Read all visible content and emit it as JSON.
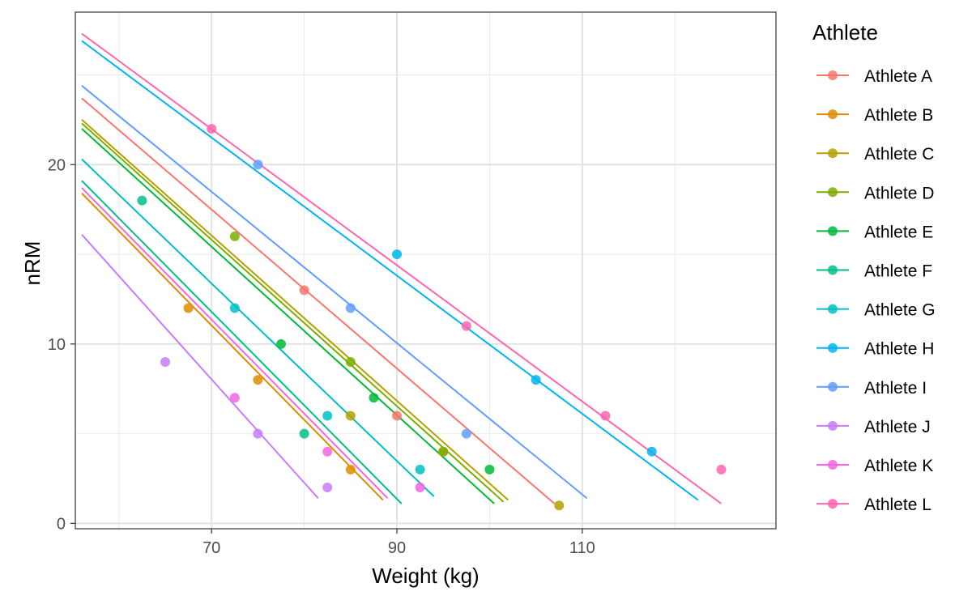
{
  "chart_data": {
    "type": "scatter",
    "xlabel": "Weight (kg)",
    "ylabel": "nRM",
    "xlim": [
      55.3,
      130.9
    ],
    "ylim": [
      -0.3,
      28.5
    ],
    "x_ticks": [
      70,
      90,
      110
    ],
    "x_minor_ticks": [
      60,
      80,
      100,
      120
    ],
    "y_ticks": [
      0,
      10,
      20
    ],
    "y_minor_ticks": [
      5,
      15,
      25
    ],
    "grid": true,
    "legend_title": "Athlete",
    "legend_position": "right",
    "series": [
      {
        "name": "Athlete A",
        "color": "#F8766D",
        "points": [
          [
            80,
            13
          ],
          [
            90,
            6
          ]
        ],
        "line": [
          [
            56,
            23.7
          ],
          [
            107,
            1.1
          ]
        ]
      },
      {
        "name": "Athlete B",
        "color": "#DE8C00",
        "points": [
          [
            67.5,
            12
          ],
          [
            75,
            8
          ],
          [
            85,
            3
          ]
        ],
        "line": [
          [
            56,
            18.4
          ],
          [
            88.5,
            1.3
          ]
        ]
      },
      {
        "name": "Athlete C",
        "color": "#B79F00",
        "points": [
          [
            85,
            6
          ],
          [
            95,
            4
          ],
          [
            107.5,
            1
          ]
        ],
        "line": [
          [
            56,
            22.5
          ],
          [
            102,
            1.3
          ]
        ]
      },
      {
        "name": "Athlete D",
        "color": "#7CAE00",
        "points": [
          [
            72.5,
            16
          ],
          [
            85,
            9
          ],
          [
            95,
            4
          ]
        ],
        "line": [
          [
            56,
            22.3
          ],
          [
            101.5,
            1.2
          ]
        ]
      },
      {
        "name": "Athlete E",
        "color": "#00BA38",
        "points": [
          [
            77.5,
            10
          ],
          [
            87.5,
            7
          ],
          [
            100,
            3
          ]
        ],
        "line": [
          [
            56,
            22
          ],
          [
            100.5,
            1.1
          ]
        ]
      },
      {
        "name": "Athlete F",
        "color": "#00C08B",
        "points": [
          [
            62.5,
            18
          ],
          [
            80,
            5
          ]
        ],
        "line": [
          [
            56,
            19.1
          ],
          [
            90.5,
            1.1
          ]
        ]
      },
      {
        "name": "Athlete G",
        "color": "#00BFC4",
        "points": [
          [
            72.5,
            12
          ],
          [
            82.5,
            6
          ],
          [
            92.5,
            3
          ]
        ],
        "line": [
          [
            56,
            20.3
          ],
          [
            94,
            1.5
          ]
        ]
      },
      {
        "name": "Athlete H",
        "color": "#00B4F0",
        "points": [
          [
            90,
            15
          ],
          [
            105,
            8
          ],
          [
            117.5,
            4
          ]
        ],
        "line": [
          [
            56,
            26.9
          ],
          [
            122.5,
            1.3
          ]
        ]
      },
      {
        "name": "Athlete I",
        "color": "#619CFF",
        "points": [
          [
            75,
            20
          ],
          [
            85,
            12
          ],
          [
            97.5,
            5
          ]
        ],
        "line": [
          [
            56,
            24.4
          ],
          [
            110.5,
            1.4
          ]
        ]
      },
      {
        "name": "Athlete J",
        "color": "#C77CFF",
        "points": [
          [
            65,
            9
          ],
          [
            75,
            5
          ],
          [
            82.5,
            2
          ]
        ],
        "line": [
          [
            56,
            16.1
          ],
          [
            81.5,
            1.4
          ]
        ]
      },
      {
        "name": "Athlete K",
        "color": "#F564E3",
        "points": [
          [
            72.5,
            7
          ],
          [
            82.5,
            4
          ],
          [
            92.5,
            2
          ]
        ],
        "line": [
          [
            56,
            18.7
          ],
          [
            89,
            1.4
          ]
        ]
      },
      {
        "name": "Athlete L",
        "color": "#FF64B0",
        "points": [
          [
            70,
            22
          ],
          [
            97.5,
            11
          ],
          [
            112.5,
            6
          ],
          [
            125,
            3
          ]
        ],
        "line": [
          [
            56,
            27.3
          ],
          [
            125,
            1.1
          ]
        ]
      }
    ]
  }
}
